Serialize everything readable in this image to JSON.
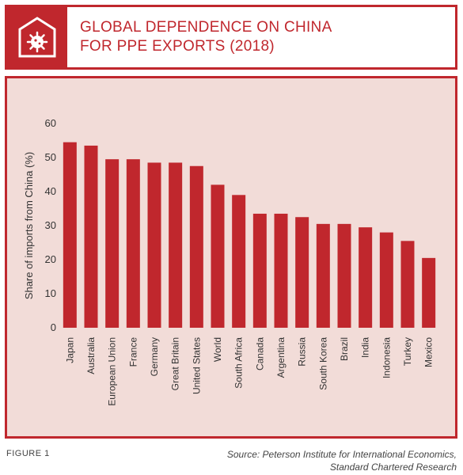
{
  "header": {
    "icon": "virus-in-box-icon",
    "title_line1": "GLOBAL DEPENDENCE ON CHINA",
    "title_line2": "FOR PPE EXPORTS (2018)"
  },
  "colors": {
    "accent": "#c0272d",
    "panel": "#f2dcd8",
    "bar": "#c0272d"
  },
  "chart_data": {
    "type": "bar",
    "ylabel": "Share of imports from China (%)",
    "ylim": [
      0,
      60
    ],
    "yticks": [
      0,
      10,
      20,
      30,
      40,
      50,
      60
    ],
    "grid": false,
    "categories": [
      "Japan",
      "Australia",
      "European Union",
      "France",
      "Germany",
      "Great Britain",
      "United States",
      "World",
      "South Africa",
      "Canada",
      "Argentina",
      "Russia",
      "South Korea",
      "Brazil",
      "India",
      "Indonesia",
      "Turkey",
      "Mexico"
    ],
    "values": [
      54.5,
      53.5,
      49.5,
      49.5,
      48.5,
      48.5,
      47.5,
      42,
      39,
      33.5,
      33.5,
      32.5,
      30.5,
      30.5,
      29.5,
      28,
      25.5,
      20.5
    ]
  },
  "footer": {
    "figure_label": "FIGURE 1",
    "source_line1": "Source: Peterson Institute for International Economics,",
    "source_line2": "Standard Chartered Research"
  }
}
